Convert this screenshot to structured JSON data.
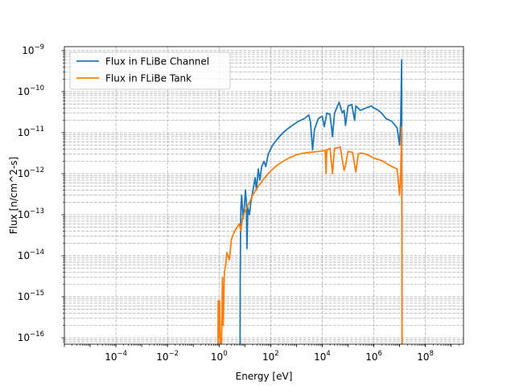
{
  "chart_data": {
    "type": "line",
    "title": "",
    "xlabel": "Energy [eV]",
    "ylabel": "Flux [n/cm^2-s]",
    "xscale": "log",
    "yscale": "log",
    "xlim": [
      1e-06,
      3000000000.0
    ],
    "ylim": [
      7e-17,
      1.25e-09
    ],
    "grid": {
      "major": true,
      "minor": true,
      "style": "dashed"
    },
    "legend_position": "upper-left",
    "x_ticks": [
      {
        "value": 0.0001,
        "base": "10",
        "exp": "−4"
      },
      {
        "value": 0.01,
        "base": "10",
        "exp": "−2"
      },
      {
        "value": 1.0,
        "base": "10",
        "exp": "0"
      },
      {
        "value": 100.0,
        "base": "10",
        "exp": "2"
      },
      {
        "value": 10000.0,
        "base": "10",
        "exp": "4"
      },
      {
        "value": 1000000.0,
        "base": "10",
        "exp": "6"
      },
      {
        "value": 100000000.0,
        "base": "10",
        "exp": "8"
      }
    ],
    "y_ticks": [
      {
        "value": 1e-16,
        "base": "10",
        "exp": "−16"
      },
      {
        "value": 1e-15,
        "base": "10",
        "exp": "−15"
      },
      {
        "value": 1e-14,
        "base": "10",
        "exp": "−14"
      },
      {
        "value": 1e-13,
        "base": "10",
        "exp": "−13"
      },
      {
        "value": 1e-12,
        "base": "10",
        "exp": "−12"
      },
      {
        "value": 1e-11,
        "base": "10",
        "exp": "−11"
      },
      {
        "value": 1e-10,
        "base": "10",
        "exp": "−10"
      },
      {
        "value": 1e-09,
        "base": "10",
        "exp": "−9"
      }
    ],
    "series": [
      {
        "name": "Flux in FLiBe Channel",
        "color": "#1f77b4",
        "points": [
          [
            6.5,
            1e-17
          ],
          [
            6.5,
            1e-16
          ],
          [
            6.6,
            3e-15
          ],
          [
            6.8,
            4e-14
          ],
          [
            7.0,
            1.5e-13
          ],
          [
            7.5,
            3e-13
          ],
          [
            8.5,
            8e-14
          ],
          [
            9.5,
            1.5e-13
          ],
          [
            10.5,
            4e-13
          ],
          [
            11.5,
            2e-13
          ],
          [
            12,
            1.5e-14
          ],
          [
            13,
            1.5e-13
          ],
          [
            15,
            1e-13
          ],
          [
            17,
            2e-13
          ],
          [
            19,
            3e-13
          ],
          [
            22,
            5e-13
          ],
          [
            25,
            8e-13
          ],
          [
            28,
            4e-13
          ],
          [
            33,
            1.3e-12
          ],
          [
            38,
            7e-13
          ],
          [
            45,
            1.5e-12
          ],
          [
            55,
            2e-12
          ],
          [
            65,
            1.5e-12
          ],
          [
            80,
            3e-12
          ],
          [
            100,
            4e-12
          ],
          [
            120,
            5e-12
          ],
          [
            150,
            6e-12
          ],
          [
            200,
            7.5e-12
          ],
          [
            300,
            1e-11
          ],
          [
            500,
            1.3e-11
          ],
          [
            800,
            1.6e-11
          ],
          [
            1200,
            1.9e-11
          ],
          [
            2000,
            2.2e-11
          ],
          [
            3000,
            2.7e-11
          ],
          [
            3500,
            1.8e-11
          ],
          [
            4200,
            3.8e-12
          ],
          [
            5000,
            1.2e-11
          ],
          [
            7000,
            2.2e-11
          ],
          [
            10000,
            2.5e-11
          ],
          [
            12000,
            1.4e-11
          ],
          [
            15000,
            3e-11
          ],
          [
            20000,
            2.8e-11
          ],
          [
            25000,
            8e-12
          ],
          [
            30000,
            3e-11
          ],
          [
            45000,
            5.5e-11
          ],
          [
            60000,
            3e-11
          ],
          [
            70000,
            3.5e-11
          ],
          [
            80000,
            1.5e-11
          ],
          [
            100000,
            4.5e-11
          ],
          [
            140000,
            4.8e-11
          ],
          [
            180000,
            2e-11
          ],
          [
            200000,
            4.5e-11
          ],
          [
            300000,
            3.5e-11
          ],
          [
            500000,
            4e-11
          ],
          [
            800000,
            4.5e-11
          ],
          [
            1000000,
            4e-11
          ],
          [
            1500000,
            3.5e-11
          ],
          [
            2000000,
            3e-11
          ],
          [
            3000000,
            2.2e-11
          ],
          [
            5000000,
            1.9e-11
          ],
          [
            8000000,
            1.3e-11
          ],
          [
            10000000,
            5e-12
          ],
          [
            11000000,
            2e-11
          ],
          [
            12000000,
            6e-10
          ],
          [
            12500000,
            1e-17
          ]
        ]
      },
      {
        "name": "Flux in FLiBe Tank",
        "color": "#ff7f0e",
        "points": [
          [
            0.9,
            1e-17
          ],
          [
            0.92,
            8e-16
          ],
          [
            0.95,
            3e-16
          ],
          [
            1.0,
            1e-16
          ],
          [
            1.05,
            8e-16
          ],
          [
            1.1,
            1e-16
          ],
          [
            1.15,
            1e-17
          ],
          [
            1.25,
            1e-16
          ],
          [
            1.35,
            3e-15
          ],
          [
            1.45,
            2e-16
          ],
          [
            1.6,
            4e-15
          ],
          [
            1.8,
            6e-15
          ],
          [
            2.0,
            1.2e-14
          ],
          [
            2.5,
            8e-15
          ],
          [
            3.0,
            2.5e-14
          ],
          [
            4.0,
            4e-14
          ],
          [
            5.0,
            5e-14
          ],
          [
            6.0,
            6e-14
          ],
          [
            7.0,
            4e-14
          ],
          [
            8.0,
            8e-14
          ],
          [
            10,
            1.2e-13
          ],
          [
            12,
            1.5e-13
          ],
          [
            15,
            2e-13
          ],
          [
            20,
            3e-13
          ],
          [
            30,
            4.5e-13
          ],
          [
            50,
            7e-13
          ],
          [
            80,
            1e-12
          ],
          [
            120,
            1.3e-12
          ],
          [
            200,
            1.7e-12
          ],
          [
            300,
            2e-12
          ],
          [
            500,
            2.4e-12
          ],
          [
            1000,
            2.9e-12
          ],
          [
            2000,
            3.2e-12
          ],
          [
            5000,
            3.4e-12
          ],
          [
            10000,
            3.6e-12
          ],
          [
            13000,
            3.7e-12
          ],
          [
            14000,
            1e-12
          ],
          [
            15000,
            3.7e-12
          ],
          [
            20000,
            4.2e-12
          ],
          [
            25000,
            1e-12
          ],
          [
            30000,
            4.2e-12
          ],
          [
            40000,
            4.3e-12
          ],
          [
            50000,
            4.5e-12
          ],
          [
            70000,
            1.2e-12
          ],
          [
            80000,
            1.6e-12
          ],
          [
            100000,
            3.5e-12
          ],
          [
            150000,
            3.3e-12
          ],
          [
            200000,
            1.1e-12
          ],
          [
            250000,
            3e-12
          ],
          [
            300000,
            3.2e-12
          ],
          [
            500000,
            3e-12
          ],
          [
            800000,
            2.6e-12
          ],
          [
            1000000,
            2.4e-12
          ],
          [
            2000000,
            2.1e-12
          ],
          [
            3000000,
            1.8e-12
          ],
          [
            5000000,
            1.5e-12
          ],
          [
            8000000,
            1.3e-12
          ],
          [
            10000000,
            3e-13
          ],
          [
            11000000,
            1e-12
          ],
          [
            12000000,
            1.4e-11
          ],
          [
            12500000,
            1e-17
          ]
        ]
      }
    ]
  }
}
